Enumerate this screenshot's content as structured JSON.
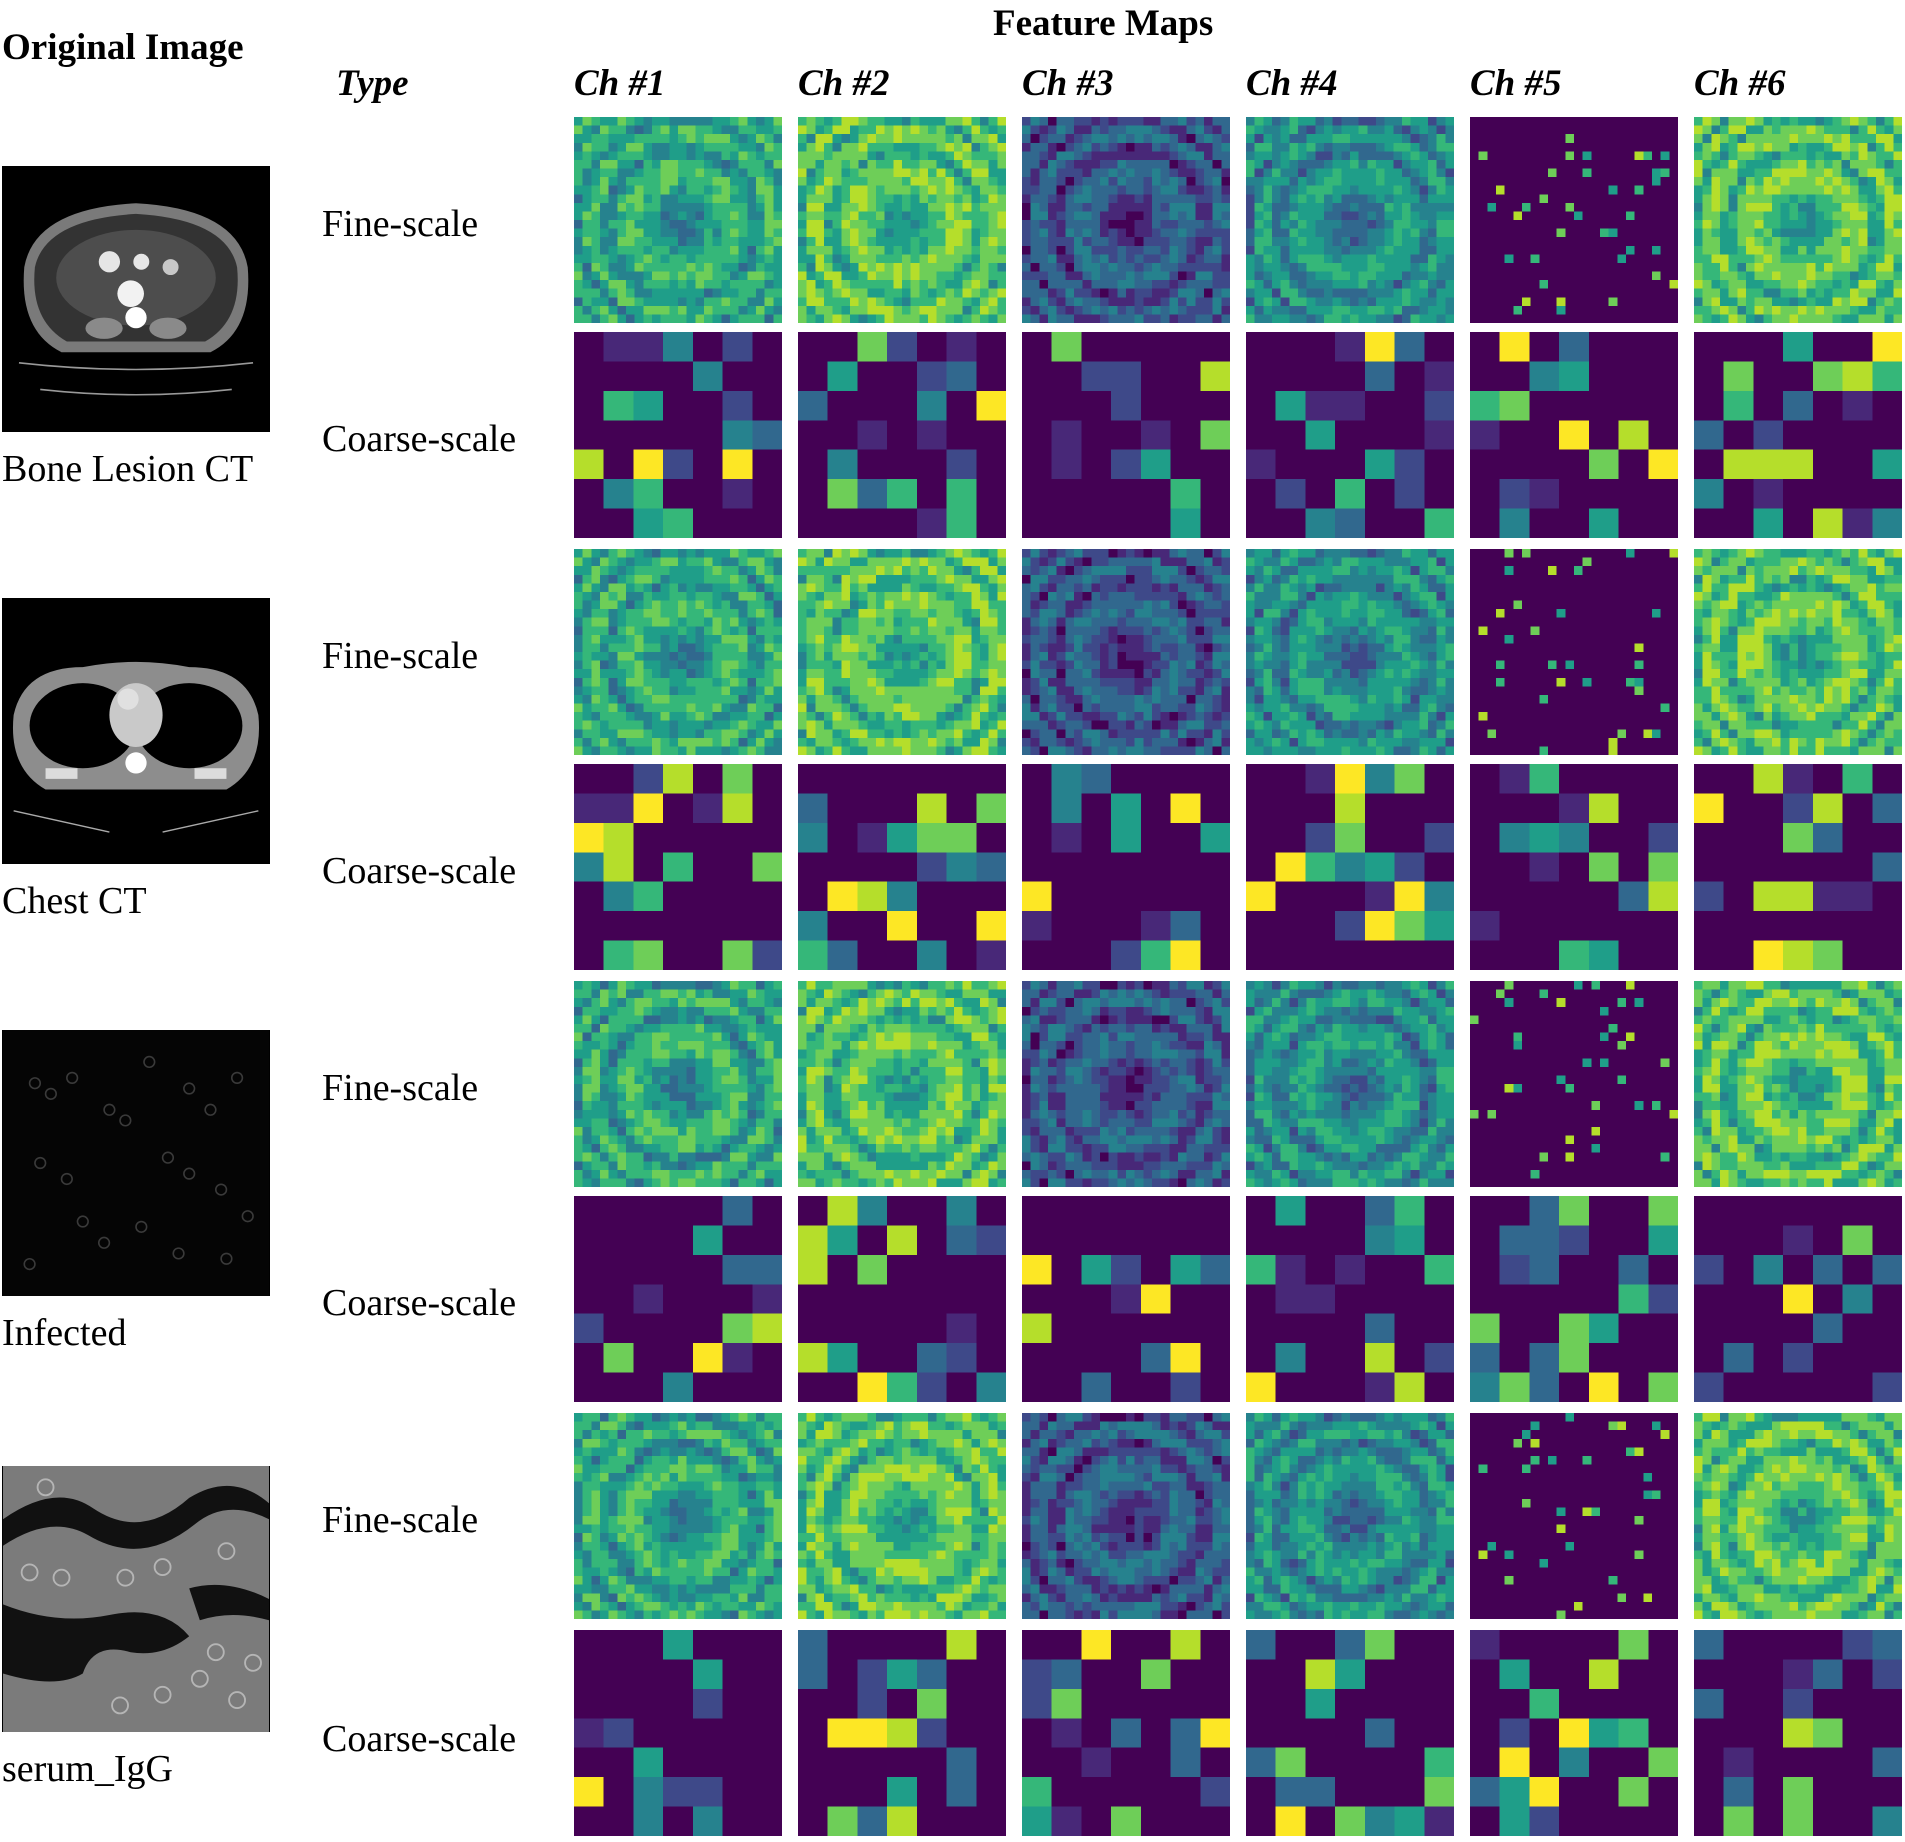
{
  "figure": {
    "header_original": "Original Image",
    "header_feature_maps": "Feature Maps",
    "header_type": "Type",
    "channels": [
      "Ch #1",
      "Ch #2",
      "Ch #3",
      "Ch #4",
      "Ch #5",
      "Ch #6"
    ],
    "colormap": [
      "#440154",
      "#482878",
      "#3e4989",
      "#31688e",
      "#26828e",
      "#1f9e89",
      "#35b779",
      "#6ece58",
      "#b5de2b",
      "#fde725"
    ],
    "samples": [
      {
        "name": "Bone Lesion CT",
        "image": "axial-abdominal-ct-icon",
        "types": [
          "Fine-scale",
          "Coarse-scale"
        ]
      },
      {
        "name": "Chest CT",
        "image": "axial-chest-ct-icon",
        "types": [
          "Fine-scale",
          "Coarse-scale"
        ]
      },
      {
        "name": "Infected",
        "image": "sparse-cells-micrograph-icon",
        "types": [
          "Fine-scale",
          "Coarse-scale"
        ]
      },
      {
        "name": "serum_IgG",
        "image": "dense-cells-micrograph-icon",
        "types": [
          "Fine-scale",
          "Coarse-scale"
        ]
      }
    ]
  }
}
